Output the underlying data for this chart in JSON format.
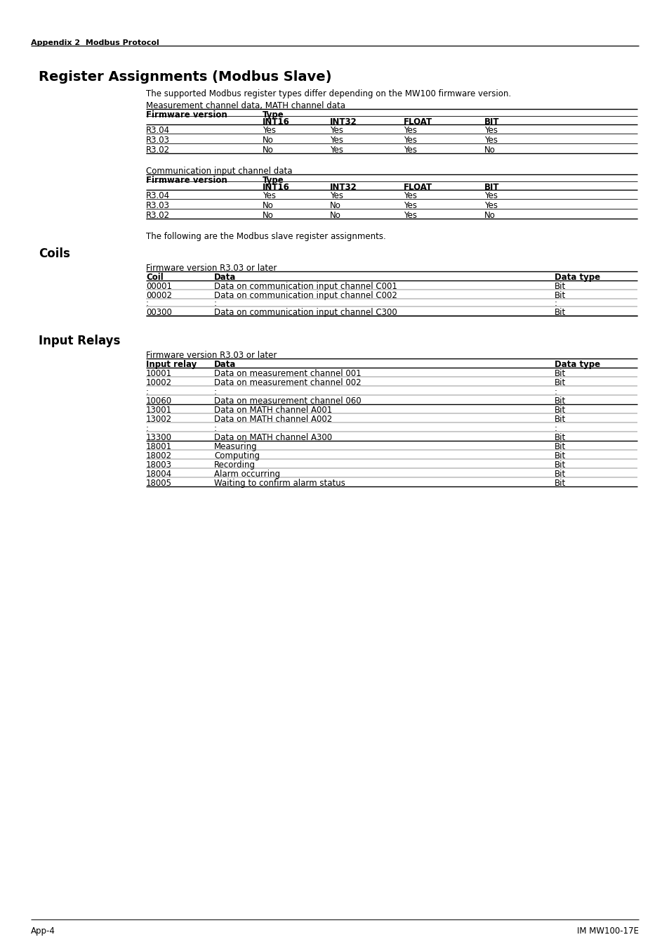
{
  "page_header": "Appendix 2  Modbus Protocol",
  "main_title": "Register Assignments (Modbus Slave)",
  "intro_text": "The supported Modbus register types differ depending on the MW100 firmware version.",
  "table1_label": "Measurement channel data, MATH channel data",
  "table1_col1_header": "Firmware version",
  "table1_col2_header": "Type",
  "table1_sub_headers": [
    "INT16",
    "INT32",
    "FLOAT",
    "BIT"
  ],
  "table1_rows": [
    [
      "R3.04",
      "Yes",
      "Yes",
      "Yes",
      "Yes"
    ],
    [
      "R3.03",
      "No",
      "Yes",
      "Yes",
      "Yes"
    ],
    [
      "R3.02",
      "No",
      "Yes",
      "Yes",
      "No"
    ]
  ],
  "table2_label": "Communication input channel data",
  "table2_col1_header": "Firmware version",
  "table2_col2_header": "Type",
  "table2_sub_headers": [
    "INT16",
    "INT32",
    "FLOAT",
    "BIT"
  ],
  "table2_rows": [
    [
      "R3.04",
      "Yes",
      "Yes",
      "Yes",
      "Yes"
    ],
    [
      "R3.03",
      "No",
      "No",
      "Yes",
      "Yes"
    ],
    [
      "R3.02",
      "No",
      "No",
      "Yes",
      "No"
    ]
  ],
  "following_text": "The following are the Modbus slave register assignments.",
  "coils_title": "Coils",
  "coils_firmware": "Firmware version R3.03 or later",
  "coils_headers": [
    "Coil",
    "Data",
    "Data type"
  ],
  "coils_rows": [
    [
      "00001",
      "Data on communication input channel C001",
      "Bit"
    ],
    [
      "00002",
      "Data on communication input channel C002",
      "Bit"
    ],
    [
      ":",
      ":",
      ":"
    ],
    [
      "00300",
      "Data on communication input channel C300",
      "Bit"
    ]
  ],
  "input_relays_title": "Input Relays",
  "input_relays_firmware": "Firmware version R3.03 or later",
  "input_relays_headers": [
    "Input relay",
    "Data",
    "Data type"
  ],
  "input_relays_rows": [
    [
      "10001",
      "Data on measurement channel 001",
      "Bit"
    ],
    [
      "10002",
      "Data on measurement channel 002",
      "Bit"
    ],
    [
      ":",
      ":",
      ":"
    ],
    [
      "10060",
      "Data on measurement channel 060",
      "Bit"
    ],
    [
      "13001",
      "Data on MATH channel A001",
      "Bit"
    ],
    [
      "13002",
      "Data on MATH channel A002",
      "Bit"
    ],
    [
      ":",
      ":",
      ":"
    ],
    [
      "13300",
      "Data on MATH channel A300",
      "Bit"
    ],
    [
      "18001",
      "Measuring",
      "Bit"
    ],
    [
      "18002",
      "Computing",
      "Bit"
    ],
    [
      "18003",
      "Recording",
      "Bit"
    ],
    [
      "18004",
      "Alarm occurring",
      "Bit"
    ],
    [
      "18005",
      "Waiting to confirm alarm status",
      "Bit"
    ]
  ],
  "footer_left": "App-4",
  "footer_right": "IM MW100-17E",
  "bg_color": "#ffffff"
}
